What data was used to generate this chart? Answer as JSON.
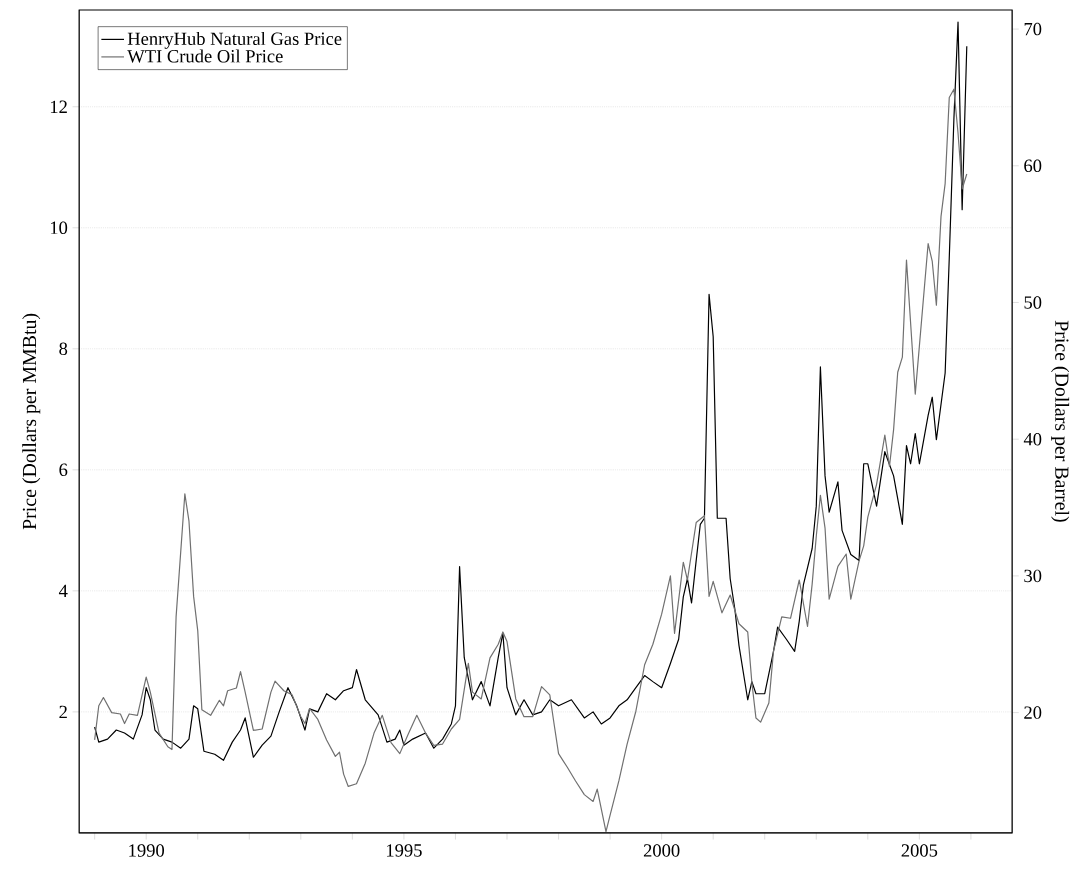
{
  "chart_data": {
    "type": "line",
    "ylabel": "Price (Dollars per MMBtu)",
    "y2label": "Price (Dollars per Barrel)",
    "xlim": [
      1988.7,
      2006.8
    ],
    "xticks": [
      {
        "value": 1989,
        "label": null
      },
      1990,
      {
        "value": 1991,
        "label": null
      },
      {
        "value": 1992,
        "label": null
      },
      {
        "value": 1993,
        "label": null
      },
      {
        "value": 1994,
        "label": null
      },
      1995,
      {
        "value": 1996,
        "label": null
      },
      {
        "value": 1997,
        "label": null
      },
      {
        "value": 1998,
        "label": null
      },
      {
        "value": 1999,
        "label": null
      },
      2000,
      {
        "value": 2001,
        "label": null
      },
      {
        "value": 2002,
        "label": null
      },
      {
        "value": 2003,
        "label": null
      },
      {
        "value": 2004,
        "label": null
      },
      2005,
      {
        "value": 2006,
        "label": null
      }
    ],
    "ylim": [
      0,
      13.6
    ],
    "yticks": [
      2,
      4,
      6,
      8,
      10,
      12
    ],
    "y2lim": [
      11.2,
      71.4
    ],
    "y2ticks": [
      20,
      30,
      40,
      50,
      60,
      70
    ],
    "grid": "y",
    "legend": "top left",
    "series": [
      {
        "name": "HenryHub Natural Gas Price",
        "color": "#000000",
        "x": [
          1989.0,
          1989.08,
          1989.25,
          1989.42,
          1989.58,
          1989.75,
          1989.92,
          1990.0,
          1990.08,
          1990.17,
          1990.33,
          1990.5,
          1990.67,
          1990.83,
          1990.92,
          1991.0,
          1991.12,
          1991.33,
          1991.5,
          1991.67,
          1991.83,
          1991.92,
          1992.08,
          1992.25,
          1992.42,
          1992.58,
          1992.75,
          1992.92,
          1993.08,
          1993.17,
          1993.33,
          1993.5,
          1993.67,
          1993.83,
          1994.0,
          1994.08,
          1994.25,
          1994.5,
          1994.67,
          1994.83,
          1994.92,
          1995.0,
          1995.17,
          1995.42,
          1995.58,
          1995.75,
          1995.92,
          1996.0,
          1996.08,
          1996.17,
          1996.33,
          1996.5,
          1996.67,
          1996.83,
          1996.92,
          1997.0,
          1997.17,
          1997.33,
          1997.5,
          1997.67,
          1997.83,
          1998.0,
          1998.25,
          1998.5,
          1998.67,
          1998.83,
          1999.0,
          1999.17,
          1999.33,
          1999.5,
          1999.67,
          1999.83,
          2000.0,
          2000.17,
          2000.33,
          2000.42,
          2000.5,
          2000.58,
          2000.67,
          2000.75,
          2000.83,
          2000.92,
          2001.0,
          2001.08,
          2001.25,
          2001.33,
          2001.42,
          2001.5,
          2001.67,
          2001.75,
          2001.83,
          2002.0,
          2002.17,
          2002.25,
          2002.42,
          2002.58,
          2002.67,
          2002.75,
          2002.92,
          2003.0,
          2003.08,
          2003.17,
          2003.25,
          2003.42,
          2003.5,
          2003.67,
          2003.83,
          2003.92,
          2004.0,
          2004.17,
          2004.33,
          2004.5,
          2004.67,
          2004.75,
          2004.83,
          2004.92,
          2005.0,
          2005.17,
          2005.25,
          2005.33,
          2005.5,
          2005.58,
          2005.67,
          2005.75,
          2005.83,
          2005.92
        ],
        "values": [
          1.75,
          1.5,
          1.55,
          1.7,
          1.65,
          1.55,
          1.95,
          2.4,
          2.2,
          1.7,
          1.55,
          1.5,
          1.4,
          1.55,
          2.1,
          2.05,
          1.35,
          1.3,
          1.2,
          1.5,
          1.7,
          1.9,
          1.25,
          1.45,
          1.6,
          2.0,
          2.4,
          2.1,
          1.7,
          2.05,
          2.0,
          2.3,
          2.2,
          2.35,
          2.4,
          2.7,
          2.2,
          1.95,
          1.5,
          1.55,
          1.7,
          1.45,
          1.55,
          1.65,
          1.4,
          1.55,
          1.8,
          2.1,
          4.4,
          2.9,
          2.2,
          2.5,
          2.1,
          2.9,
          3.3,
          2.4,
          1.95,
          2.2,
          1.95,
          2.0,
          2.2,
          2.1,
          2.2,
          1.9,
          2.0,
          1.8,
          1.9,
          2.1,
          2.2,
          2.4,
          2.6,
          2.5,
          2.4,
          2.8,
          3.2,
          3.9,
          4.2,
          3.8,
          4.5,
          5.1,
          5.2,
          8.9,
          8.2,
          5.2,
          5.2,
          4.2,
          3.7,
          3.1,
          2.2,
          2.5,
          2.3,
          2.3,
          3.0,
          3.4,
          3.2,
          3.0,
          3.5,
          4.1,
          4.7,
          5.4,
          7.7,
          5.9,
          5.3,
          5.8,
          5.0,
          4.6,
          4.5,
          6.1,
          6.1,
          5.4,
          6.3,
          5.9,
          5.1,
          6.4,
          6.1,
          6.6,
          6.1,
          6.9,
          7.2,
          6.5,
          7.6,
          9.5,
          11.8,
          13.4,
          10.3,
          13.0
        ]
      },
      {
        "name": "WTI Crude Oil Price",
        "color": "#707070",
        "axis": "y2",
        "x": [
          1989.0,
          1989.08,
          1989.17,
          1989.33,
          1989.5,
          1989.58,
          1989.67,
          1989.83,
          1990.0,
          1990.08,
          1990.25,
          1990.42,
          1990.5,
          1990.58,
          1990.75,
          1990.83,
          1990.92,
          1991.0,
          1991.08,
          1991.25,
          1991.42,
          1991.5,
          1991.58,
          1991.75,
          1991.83,
          1991.92,
          1992.08,
          1992.25,
          1992.42,
          1992.5,
          1992.67,
          1992.83,
          1993.0,
          1993.08,
          1993.17,
          1993.33,
          1993.5,
          1993.67,
          1993.75,
          1993.83,
          1993.92,
          1994.08,
          1994.25,
          1994.42,
          1994.58,
          1994.75,
          1994.92,
          1995.08,
          1995.25,
          1995.42,
          1995.58,
          1995.75,
          1995.92,
          1996.08,
          1996.25,
          1996.33,
          1996.5,
          1996.67,
          1996.83,
          1996.92,
          1997.0,
          1997.17,
          1997.33,
          1997.5,
          1997.67,
          1997.83,
          1997.92,
          1998.0,
          1998.17,
          1998.33,
          1998.5,
          1998.67,
          1998.75,
          1998.92,
          1999.0,
          1999.17,
          1999.33,
          1999.5,
          1999.67,
          1999.83,
          2000.0,
          2000.17,
          2000.25,
          2000.42,
          2000.5,
          2000.67,
          2000.83,
          2000.92,
          2001.0,
          2001.17,
          2001.33,
          2001.5,
          2001.67,
          2001.75,
          2001.83,
          2001.92,
          2002.08,
          2002.17,
          2002.33,
          2002.5,
          2002.67,
          2002.83,
          2002.92,
          2003.0,
          2003.08,
          2003.17,
          2003.25,
          2003.42,
          2003.58,
          2003.67,
          2003.83,
          2003.92,
          2004.0,
          2004.17,
          2004.33,
          2004.42,
          2004.5,
          2004.58,
          2004.67,
          2004.75,
          2004.83,
          2004.92,
          2005.0,
          2005.17,
          2005.25,
          2005.33,
          2005.42,
          2005.5,
          2005.58,
          2005.67,
          2005.75,
          2005.83,
          2005.92
        ],
        "values": [
          18.0,
          20.5,
          21.1,
          20.0,
          19.9,
          19.2,
          19.9,
          19.8,
          22.6,
          21.5,
          18.5,
          17.5,
          17.3,
          27.0,
          36.0,
          34.0,
          28.5,
          26.0,
          20.2,
          19.8,
          20.9,
          20.5,
          21.6,
          21.8,
          23.0,
          21.5,
          18.7,
          18.8,
          21.5,
          22.3,
          21.6,
          21.3,
          19.7,
          19.2,
          20.3,
          19.5,
          18.0,
          16.8,
          17.1,
          15.5,
          14.6,
          14.8,
          16.3,
          18.5,
          19.8,
          17.8,
          17.0,
          18.4,
          19.8,
          18.5,
          17.6,
          17.7,
          18.8,
          19.5,
          23.6,
          21.5,
          21.0,
          24.0,
          25.0,
          25.9,
          25.2,
          21.0,
          19.7,
          19.7,
          21.9,
          21.3,
          19.0,
          17.0,
          16.0,
          15.0,
          14.0,
          13.5,
          14.4,
          11.3,
          12.5,
          15.0,
          17.7,
          20.1,
          23.5,
          25.0,
          27.2,
          30.0,
          25.8,
          31.0,
          29.7,
          33.9,
          34.4,
          28.5,
          29.6,
          27.3,
          28.6,
          26.5,
          25.9,
          22.2,
          19.6,
          19.3,
          20.7,
          24.5,
          27.0,
          26.9,
          29.7,
          26.3,
          29.4,
          32.9,
          35.9,
          33.5,
          28.3,
          30.7,
          31.6,
          28.3,
          31.1,
          32.2,
          34.3,
          36.7,
          40.3,
          38.0,
          40.7,
          44.9,
          46.0,
          53.1,
          48.5,
          43.3,
          46.8,
          54.3,
          53.0,
          49.8,
          56.3,
          58.7,
          65.0,
          65.6,
          62.4,
          58.3,
          59.4
        ]
      }
    ]
  }
}
